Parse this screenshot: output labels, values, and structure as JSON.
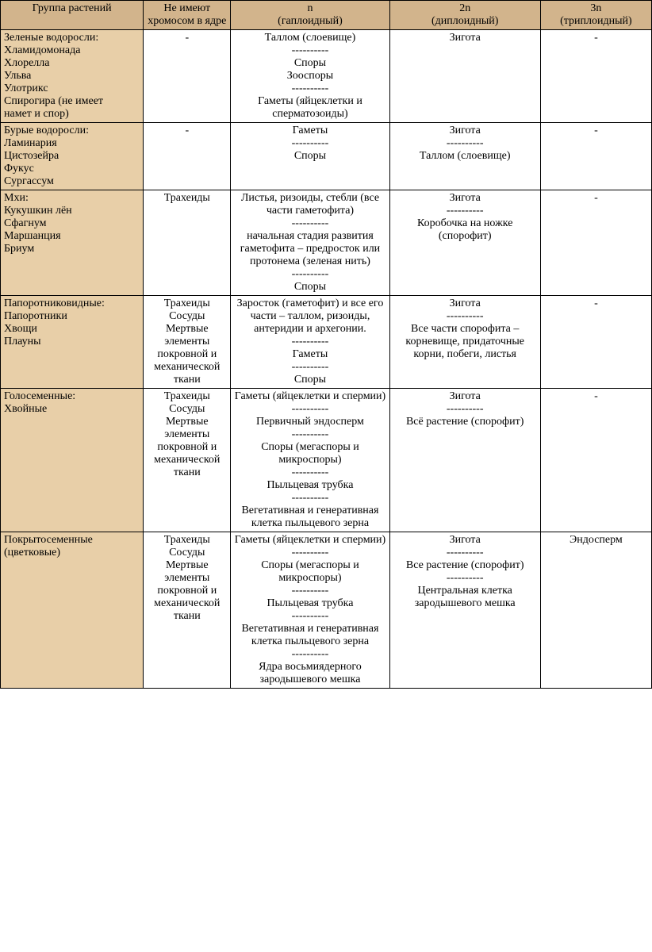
{
  "colors": {
    "header_bg": "#d2b48c",
    "group_bg": "#e8cfa8",
    "border": "#000000",
    "text": "#000000",
    "page_bg": "#ffffff"
  },
  "typography": {
    "font_family": "Times New Roman",
    "font_size_pt": 11
  },
  "separator": "----------",
  "headers": {
    "c1": "Группа растений",
    "c2": "Не имеют хромосом в ядре",
    "c3_l1": "n",
    "c3_l2": "(гаплоидный)",
    "c4_l1": "2n",
    "c4_l2": "(диплоидный)",
    "c5_l1": "3n",
    "c5_l2": "(триплоидный)"
  },
  "rows": {
    "r1": {
      "group_l1": "Зеленые водоросли:",
      "group_l2": "Хламидомонада",
      "group_l3": "Хлорелла",
      "group_l4": "Ульва",
      "group_l5": "Улотрикс",
      "group_l6": "Спирогира (не имеет",
      "group_l7": "намет и спор)",
      "c2": "-",
      "c3_1": "Таллом (слоевище)",
      "c3_2": "Споры",
      "c3_3": "Зооспоры",
      "c3_4": "Гаметы (яйцеклетки и сперматозоиды)",
      "c4_1": "Зигота",
      "c5": "-"
    },
    "r2": {
      "group_l1": "Бурые водоросли:",
      "group_l2": "Ламинария",
      "group_l3": "Цистозейра",
      "group_l4": "Фукус",
      "group_l5": "Сургассум",
      "c2": "-",
      "c3_1": "Гаметы",
      "c3_2": "Споры",
      "c4_1": "Зигота",
      "c4_2": "Таллом (слоевище)",
      "c5": "-"
    },
    "r3": {
      "group_l1": "Мхи:",
      "group_l2": "Кукушкин лён",
      "group_l3": "Сфагнум",
      "group_l4": "Маршанция",
      "group_l5": "Бриум",
      "c2": "Трахеиды",
      "c3_1": "Листья, ризоиды, стебли (все части гаметофита)",
      "c3_2": "начальная стадия развития гаметофита – предросток или протонема (зеленая нить)",
      "c3_3": "Споры",
      "c4_1": "Зигота",
      "c4_2": "Коробочка на ножке (спорофит)",
      "c5": "-"
    },
    "r4": {
      "group_l1": "Папоротниковидные:",
      "group_l2": "Папоротники",
      "group_l3": "Хвощи",
      "group_l4": "Плауны",
      "c2_1": "Трахеиды",
      "c2_2": "Сосуды",
      "c2_3": "Мертвые элементы покровной и механической ткани",
      "c3_1": "Заросток (гаметофит) и все его части – таллом, ризоиды, антеридии и архегонии.",
      "c3_2": "Гаметы",
      "c3_3": "Споры",
      "c4_1": "Зигота",
      "c4_2": "Все части спорофита – корневище, придаточные корни, побеги, листья",
      "c5": "-"
    },
    "r5": {
      "group_l1": "Голосеменные:",
      "group_l2": "Хвойные",
      "c2_1": "Трахеиды",
      "c2_2": "Сосуды",
      "c2_3": "Мертвые элементы покровной и механической ткани",
      "c3_1": "Гаметы (яйцеклетки и спермии)",
      "c3_2": "Первичный эндосперм",
      "c3_3": "Споры (мегаспоры и микроспоры)",
      "c3_4": "Пыльцевая трубка",
      "c3_5": "Вегетативная и генеративная клетка пыльцевого зерна",
      "c4_1": "Зигота",
      "c4_2": "Всё растение (спорофит)",
      "c5": "-"
    },
    "r6": {
      "group_l1": "Покрытосеменные (цветковые)",
      "c2_1": "Трахеиды",
      "c2_2": "Сосуды",
      "c2_3": "Мертвые элементы покровной и механической ткани",
      "c3_1": "Гаметы (яйцеклетки и спермии)",
      "c3_2": "Споры (мегаспоры и микроспоры)",
      "c3_3": "Пыльцевая трубка",
      "c3_4": "Вегетативная и генеративная клетка пыльцевого зерна",
      "c3_5": "Ядра восьмиядерного зародышевого мешка",
      "c4_1": "Зигота",
      "c4_2": "Все растение (спорофит)",
      "c4_3": "Центральная клетка зародышевого мешка",
      "c5": "Эндосперм"
    }
  }
}
